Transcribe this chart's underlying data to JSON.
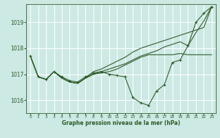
{
  "xlabel": "Graphe pression niveau de la mer (hPa)",
  "x_ticks": [
    0,
    1,
    2,
    3,
    4,
    5,
    6,
    7,
    8,
    9,
    10,
    11,
    12,
    13,
    14,
    15,
    16,
    17,
    18,
    19,
    20,
    21,
    22,
    23
  ],
  "ylim": [
    1015.5,
    1019.7
  ],
  "yticks": [
    1016,
    1017,
    1018,
    1019
  ],
  "bg_color": "#cce9e4",
  "grid_color": "#ffffff",
  "line_color": "#2d5a27",
  "s0": [
    1017.7,
    1016.9,
    1016.8,
    1017.1,
    1016.9,
    1016.75,
    1016.7,
    1016.9,
    1017.05,
    1017.1,
    1017.0,
    1016.95,
    1016.9,
    1016.1,
    1015.9,
    1015.8,
    1016.35,
    1016.6,
    1017.45,
    1017.55,
    1018.1,
    1019.0,
    1019.35,
    1019.6
  ],
  "s1": [
    1017.7,
    1016.9,
    1016.8,
    1017.1,
    1016.85,
    1016.7,
    1016.65,
    1016.85,
    1017.0,
    1017.05,
    1017.1,
    1017.2,
    1017.35,
    1017.5,
    1017.65,
    1017.75,
    1017.75,
    1017.75,
    1017.75,
    1017.8,
    1017.75,
    1017.75,
    1017.75,
    1017.75
  ],
  "s2": [
    1017.7,
    1016.9,
    1016.8,
    1017.1,
    1016.85,
    1016.7,
    1016.65,
    1016.85,
    1017.1,
    1017.2,
    1017.35,
    1017.5,
    1017.65,
    1017.85,
    1018.0,
    1018.1,
    1018.2,
    1018.3,
    1018.4,
    1018.5,
    1018.6,
    1018.7,
    1018.8,
    1019.6
  ],
  "s3": [
    1017.7,
    1016.9,
    1016.8,
    1017.1,
    1016.85,
    1016.7,
    1016.65,
    1016.85,
    1017.0,
    1017.1,
    1017.2,
    1017.3,
    1017.4,
    1017.55,
    1017.7,
    1017.8,
    1017.9,
    1018.05,
    1018.15,
    1018.25,
    1018.1,
    1018.6,
    1019.05,
    1019.6
  ]
}
